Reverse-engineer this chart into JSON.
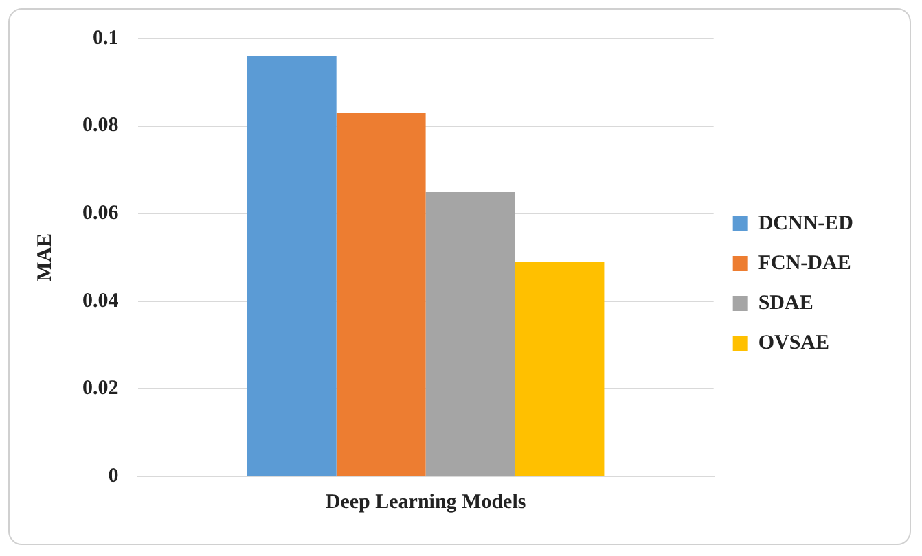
{
  "chart_data": {
    "type": "bar",
    "ylabel": "MAE",
    "categories": [
      "Deep Learning Models"
    ],
    "series": [
      {
        "name": "DCNN-ED",
        "color": "#5b9bd5",
        "values": [
          0.096
        ]
      },
      {
        "name": "FCN-DAE",
        "color": "#ed7d31",
        "values": [
          0.083
        ]
      },
      {
        "name": "SDAE",
        "color": "#a5a5a5",
        "values": [
          0.065
        ]
      },
      {
        "name": "OVSAE",
        "color": "#ffc000",
        "values": [
          0.049
        ]
      }
    ],
    "ylim": [
      0,
      0.1
    ],
    "yticks": [
      0,
      0.02,
      0.04,
      0.06,
      0.08,
      {
        "value": 0.1,
        "label": "0.1"
      }
    ],
    "grid": "y",
    "legend": "right"
  }
}
